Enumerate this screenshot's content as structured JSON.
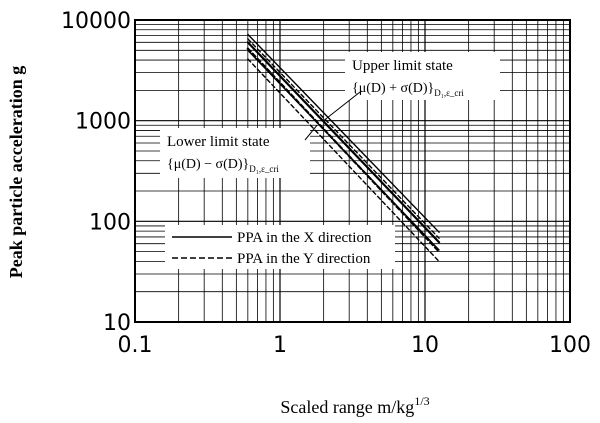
{
  "chart_data": {
    "type": "line",
    "xscale": "log",
    "yscale": "log",
    "xlim": [
      0.1,
      100
    ],
    "ylim": [
      10,
      10000
    ],
    "x_ticks": [
      "0.1",
      "1",
      "10",
      "100"
    ],
    "y_ticks": [
      "10",
      "100",
      "1000",
      "10000"
    ],
    "xlabel": "Scaled range m/kg",
    "xlabel_sup": "1/3",
    "ylabel": "Peak particle acceleration g",
    "grid": true,
    "legend_position": "bottom-center",
    "series": [
      {
        "name": "PPA in the X direction",
        "style": "solid",
        "role": "main",
        "points": [
          [
            0.6,
            6000
          ],
          [
            12.5,
            62
          ]
        ]
      },
      {
        "name": "PPA in the Y direction",
        "style": "dashed",
        "role": "main",
        "points": [
          [
            0.6,
            5200
          ],
          [
            12.5,
            50
          ]
        ]
      },
      {
        "style": "solid",
        "role": "upper",
        "points": [
          [
            0.6,
            7200
          ],
          [
            12.5,
            78
          ]
        ]
      },
      {
        "style": "dashed",
        "role": "upper",
        "points": [
          [
            0.6,
            6500
          ],
          [
            12.5,
            68
          ]
        ]
      },
      {
        "style": "solid",
        "role": "lower",
        "points": [
          [
            0.6,
            5000
          ],
          [
            12.5,
            52
          ]
        ]
      },
      {
        "style": "dashed",
        "role": "lower",
        "points": [
          [
            0.6,
            4100
          ],
          [
            12.5,
            40
          ]
        ]
      }
    ],
    "annotations": [
      {
        "title": "Upper limit state",
        "formula": "{μ(D) + σ(D)}",
        "subscript": "D₁,ε_cri",
        "arrow_to": [
          2.0,
          1000
        ]
      },
      {
        "title": "Lower limit state",
        "formula": "{μ(D) − σ(D)}",
        "subscript": "D₁,ε_cri",
        "arrow_to": [
          1.8,
          900
        ]
      }
    ]
  }
}
